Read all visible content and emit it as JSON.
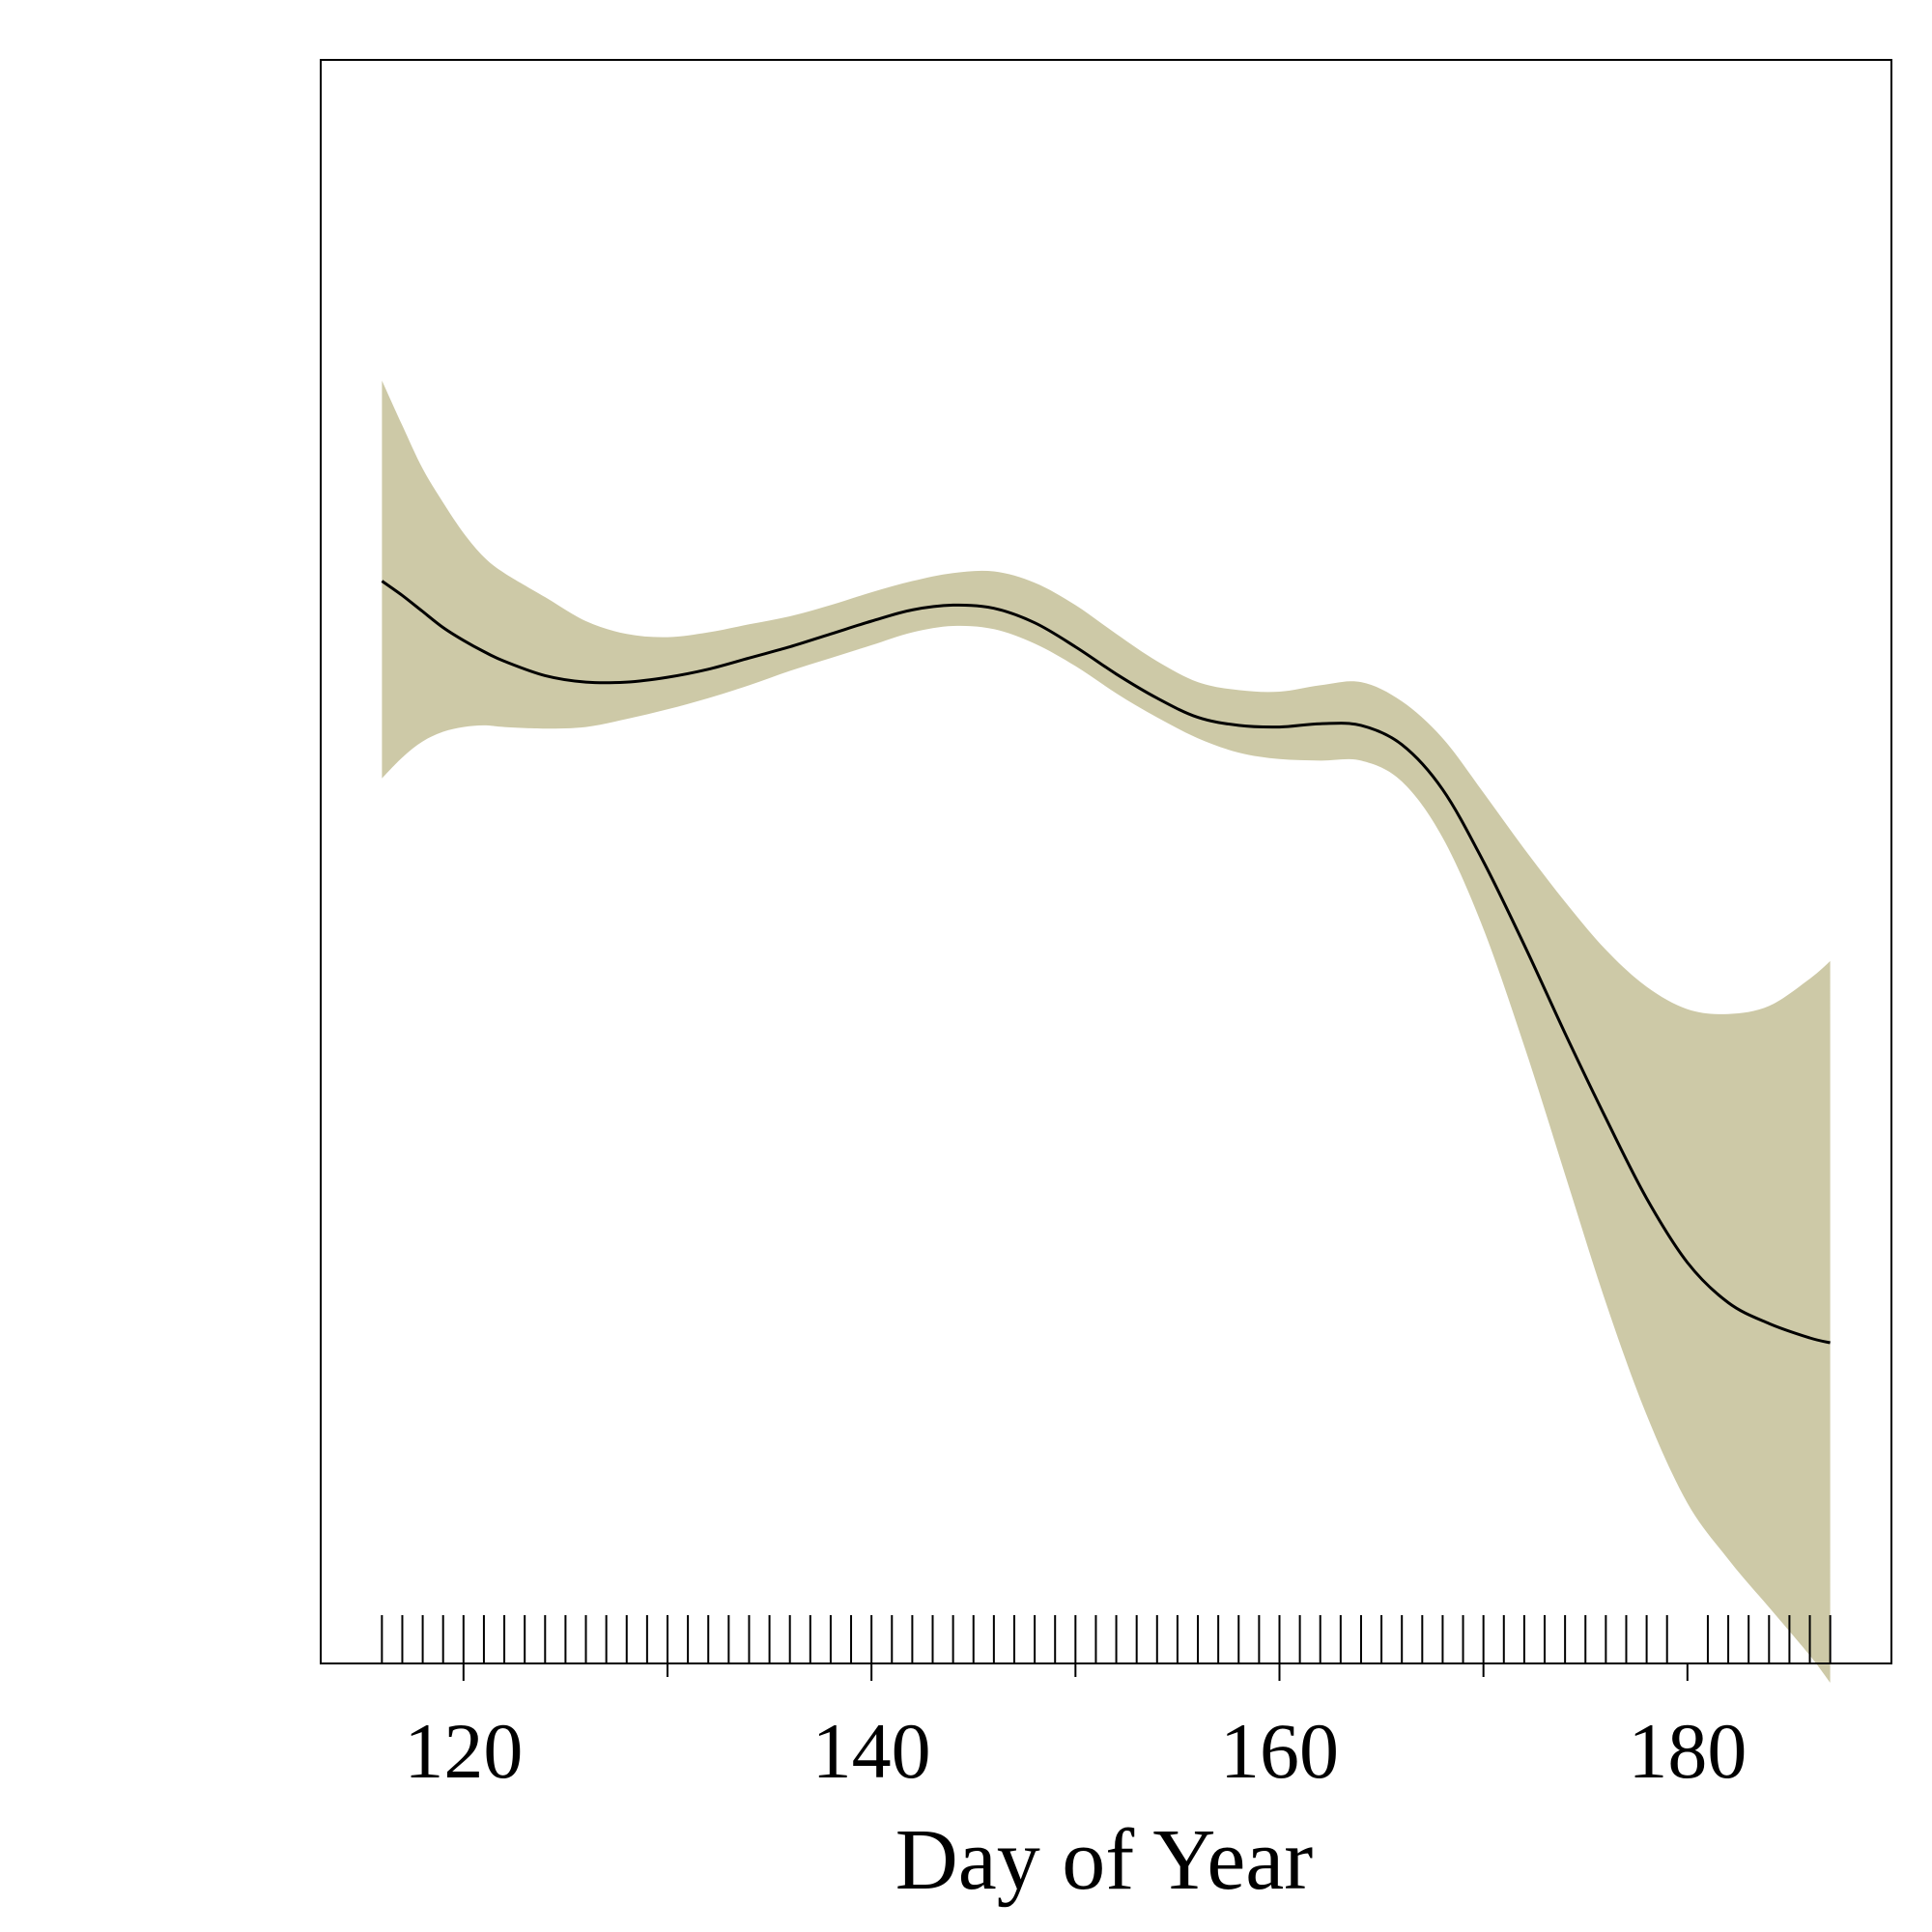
{
  "chart_data": {
    "type": "area",
    "title": "",
    "xlabel": "Day of Year",
    "ylabel": "",
    "xlim": [
      113,
      190
    ],
    "ylim": [
      0,
      100
    ],
    "x_ticks": [
      120,
      140,
      160,
      180
    ],
    "x_minor_ticks": [
      130,
      150,
      170
    ],
    "grid": false,
    "legend": "none",
    "colors": {
      "band": "#cdc9a7",
      "line": "#000000",
      "frame": "#000000",
      "rug": "#000000"
    },
    "series": [
      {
        "x": [
          116,
          117,
          118,
          119,
          120,
          121,
          122,
          124,
          126,
          128,
          130,
          132,
          134,
          136,
          138,
          140,
          142,
          144,
          146,
          148,
          150,
          152,
          154,
          156,
          158,
          160,
          162,
          164,
          166,
          168,
          170,
          172,
          174,
          176,
          178,
          180,
          182,
          184,
          186,
          187
        ],
        "y": [
          67.5,
          66.6,
          65.6,
          64.6,
          63.8,
          63.1,
          62.5,
          61.6,
          61.2,
          61.2,
          61.5,
          62.0,
          62.7,
          63.4,
          64.2,
          65.0,
          65.7,
          66.0,
          65.8,
          64.9,
          63.4,
          61.7,
          60.2,
          59.0,
          58.5,
          58.4,
          58.6,
          58.5,
          57.3,
          54.5,
          50.0,
          44.8,
          39.3,
          34.0,
          29.0,
          25.0,
          22.5,
          21.2,
          20.3,
          20.0
        ],
        "lower": [
          55.2,
          56.5,
          57.5,
          58.1,
          58.4,
          58.5,
          58.4,
          58.3,
          58.4,
          58.9,
          59.5,
          60.2,
          61.0,
          61.9,
          62.7,
          63.5,
          64.3,
          64.7,
          64.5,
          63.6,
          62.2,
          60.5,
          59.0,
          57.7,
          56.8,
          56.4,
          56.3,
          56.3,
          55.0,
          51.5,
          45.8,
          38.5,
          30.5,
          22.5,
          15.5,
          10.0,
          6.5,
          3.5,
          0.5,
          -1.2
        ],
        "upper": [
          80.0,
          77.2,
          74.5,
          72.4,
          70.5,
          69.0,
          68.0,
          66.5,
          65.0,
          64.2,
          64.0,
          64.3,
          64.8,
          65.3,
          66.0,
          66.8,
          67.5,
          68.0,
          68.1,
          67.4,
          66.0,
          64.2,
          62.5,
          61.2,
          60.7,
          60.6,
          61.0,
          61.2,
          60.0,
          57.7,
          54.3,
          50.8,
          47.5,
          44.5,
          42.2,
          40.8,
          40.5,
          41.0,
          42.7,
          43.8
        ]
      }
    ],
    "rug_x": [
      116,
      117,
      118,
      119,
      120,
      121,
      122,
      123,
      124,
      125,
      126,
      127,
      128,
      129,
      130,
      131,
      132,
      133,
      134,
      135,
      136,
      137,
      138,
      139,
      140,
      141,
      142,
      143,
      144,
      145,
      146,
      147,
      148,
      149,
      150,
      151,
      152,
      153,
      154,
      155,
      156,
      157,
      158,
      159,
      160,
      161,
      162,
      163,
      164,
      165,
      166,
      167,
      168,
      169,
      170,
      171,
      172,
      173,
      174,
      175,
      176,
      177,
      178,
      179,
      181,
      182,
      183,
      184,
      185,
      186,
      187
    ]
  }
}
